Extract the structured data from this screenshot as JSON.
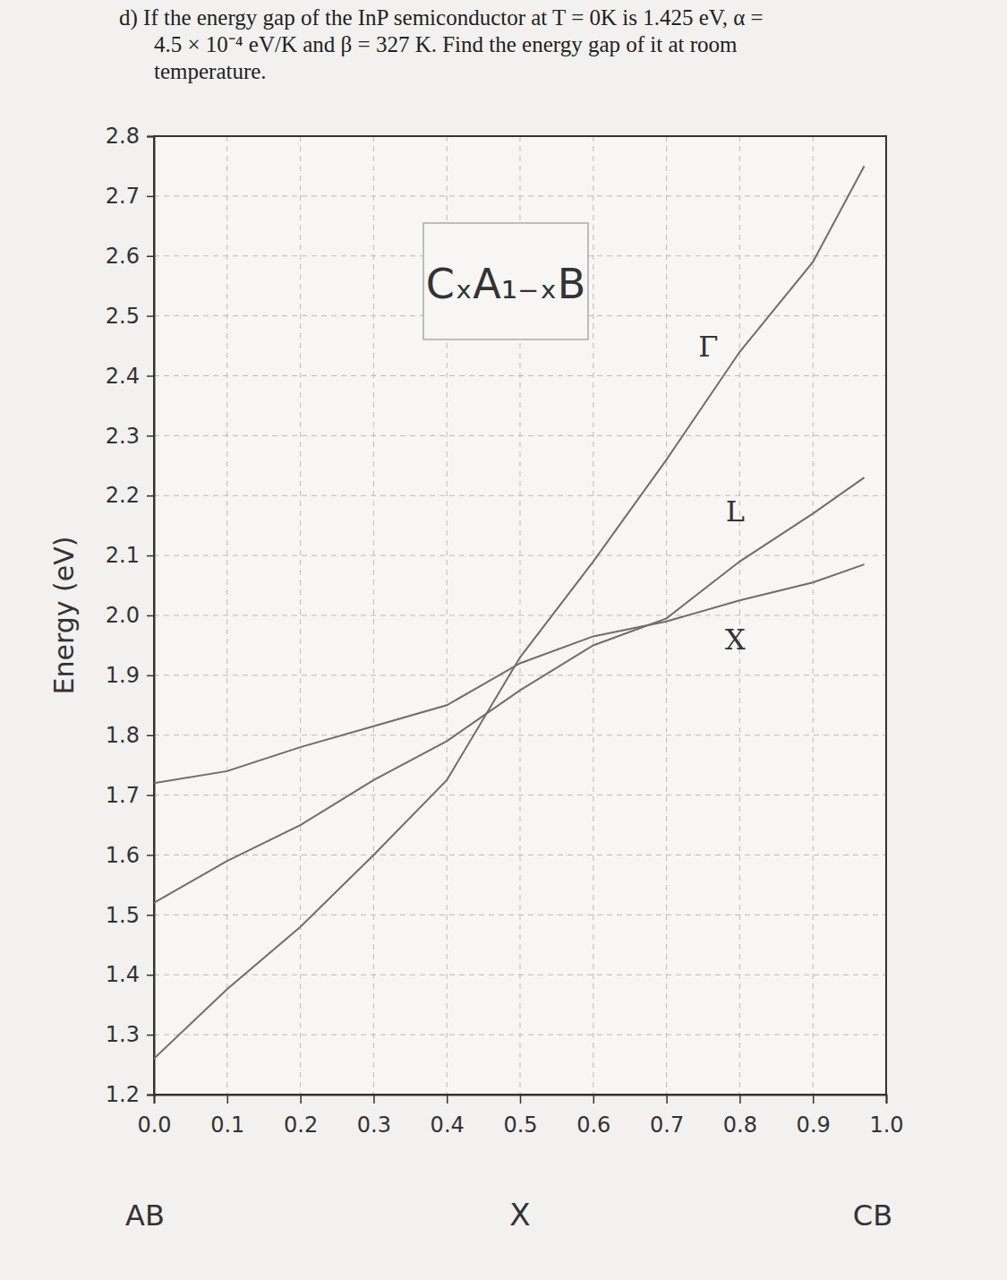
{
  "question": [
    "d) If the energy gap of the InP semiconductor at T = 0K is 1.425 eV, α =",
    "4.5 × 10⁻⁴ eV/K and β = 327 K. Find the energy gap of it at room",
    "temperature."
  ],
  "chart_data": {
    "type": "line",
    "title": "CₓA₁₋ₓB",
    "xlabel": "X",
    "ylabel": "Energy (eV)",
    "x_end_labels": [
      "AB",
      "CB"
    ],
    "x": [
      0,
      0.1,
      0.2,
      0.3,
      0.4,
      0.5,
      0.6,
      0.7,
      0.8,
      0.9,
      0.97
    ],
    "series": [
      {
        "name": "Γ",
        "color": "#6e6e6e",
        "values": [
          1.26,
          1.376,
          1.48,
          1.6,
          1.725,
          1.93,
          2.09,
          2.26,
          2.44,
          2.59,
          2.75
        ]
      },
      {
        "name": "L",
        "color": "#6e6e6e",
        "values": [
          1.52,
          1.59,
          1.65,
          1.725,
          1.79,
          1.875,
          1.95,
          1.995,
          2.09,
          2.17,
          2.23
        ]
      },
      {
        "name": "X",
        "color": "#6e6e6e",
        "values": [
          1.72,
          1.74,
          1.78,
          1.815,
          1.85,
          1.92,
          1.965,
          1.99,
          2.025,
          2.055,
          2.085
        ]
      }
    ],
    "xlim": [
      0,
      1
    ],
    "xticks": [
      {
        "value": 0,
        "label": "0.0"
      },
      0.1,
      0.2,
      0.3,
      0.4,
      0.5,
      0.6,
      0.7,
      0.8,
      0.9,
      {
        "value": 1,
        "label": "1.0"
      }
    ],
    "ylim": [
      1.2,
      2.8
    ],
    "yticks": [
      1.2,
      1.3,
      1.4,
      1.5,
      1.6,
      1.7,
      1.8,
      1.9,
      {
        "value": 2,
        "label": "2.0"
      },
      2.1,
      2.2,
      2.3,
      2.4,
      2.5,
      2.6,
      2.7,
      2.8
    ],
    "grid": true
  }
}
